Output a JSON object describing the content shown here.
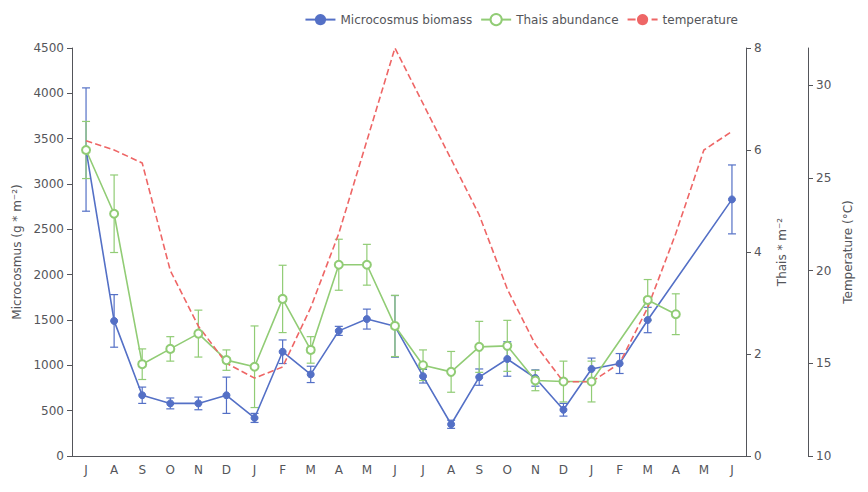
{
  "chart_data": {
    "type": "line",
    "categories": [
      "J",
      "A",
      "S",
      "O",
      "N",
      "D",
      "J",
      "F",
      "M",
      "A",
      "M",
      "J",
      "J",
      "A",
      "S",
      "O",
      "N",
      "D",
      "J",
      "F",
      "M",
      "A",
      "M",
      "J"
    ],
    "ylabel": "Microcosmus (g * m⁻²)",
    "y2label": "Thais * m⁻²",
    "y3label": "Temperature (°C)",
    "ylim": [
      0,
      4500
    ],
    "yticks": [
      0,
      500,
      1000,
      1500,
      2000,
      2500,
      3000,
      3500,
      4000,
      4500
    ],
    "y2lim": [
      0,
      8
    ],
    "y2ticks": [
      0,
      2,
      4,
      6,
      8
    ],
    "y3lim": [
      10,
      32
    ],
    "y3ticks": [
      10,
      15,
      20,
      25,
      30
    ],
    "grid": false,
    "legend": "upper right",
    "series": [
      {
        "name": "Microcosmus biomass",
        "axis": "y",
        "color": "#5470c6",
        "marker": "circle",
        "line_style": "solid",
        "values": [
          3380,
          1490,
          670,
          580,
          580,
          670,
          420,
          1150,
          900,
          1380,
          1510,
          1430,
          880,
          350,
          870,
          1070,
          860,
          510,
          960,
          1020,
          1500,
          null,
          null,
          2830
        ],
        "yerr": [
          680,
          290,
          90,
          60,
          70,
          200,
          50,
          130,
          90,
          50,
          110,
          340,
          75,
          45,
          90,
          190,
          90,
          70,
          120,
          110,
          140,
          null,
          null,
          380
        ]
      },
      {
        "name": "Thais abundance",
        "axis": "y2",
        "color": "#91cc75",
        "marker": "open circle",
        "line_style": "solid",
        "values": [
          6.0,
          4.75,
          1.8,
          2.1,
          2.4,
          1.88,
          1.75,
          3.08,
          2.08,
          3.75,
          3.75,
          2.55,
          1.78,
          1.65,
          2.14,
          2.16,
          1.48,
          1.46,
          1.46,
          null,
          3.06,
          2.78,
          null,
          null
        ],
        "yerr": [
          0.56,
          0.76,
          0.3,
          0.24,
          0.46,
          0.2,
          0.8,
          0.66,
          0.26,
          0.5,
          0.4,
          0.6,
          0.3,
          0.4,
          0.5,
          0.5,
          0.2,
          0.4,
          0.4,
          null,
          0.4,
          0.4,
          null,
          null
        ]
      },
      {
        "name": "temperature",
        "axis": "y3",
        "color": "#ee6666",
        "marker": "none",
        "line_style": "dashed",
        "values": [
          27.0,
          26.5,
          25.8,
          20.0,
          17.0,
          15.0,
          14.2,
          14.8,
          18.0,
          22.0,
          27.0,
          32.0,
          29.0,
          26.0,
          23.0,
          19.0,
          16.0,
          14.0,
          14.0,
          15.0,
          18.0,
          22.0,
          26.5,
          27.5
        ]
      }
    ]
  }
}
